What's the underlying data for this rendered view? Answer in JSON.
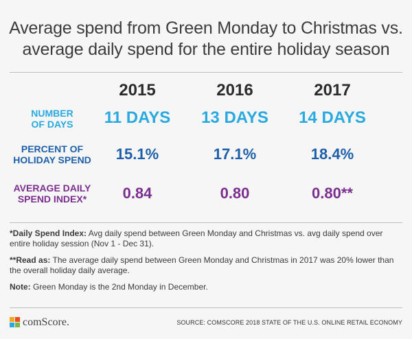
{
  "title": {
    "line1": "Average spend from Green Monday to Christmas vs.",
    "line2": "average daily spend for the entire holiday season"
  },
  "years": [
    "2015",
    "2016",
    "2017"
  ],
  "rows": {
    "days": {
      "label1": "NUMBER",
      "label2": "OF DAYS",
      "values": [
        "11 DAYS",
        "13 DAYS",
        "14 DAYS"
      ]
    },
    "percent": {
      "label1": "PERCENT OF",
      "label2": "HOLIDAY SPEND",
      "values": [
        "15.1%",
        "17.1%",
        "18.4%"
      ]
    },
    "index": {
      "label1": "AVERAGE DAILY",
      "label2": "SPEND INDEX*",
      "values": [
        "0.84",
        "0.80",
        "0.80**"
      ]
    }
  },
  "notes": {
    "n1_bold": "*Daily Spend Index:",
    "n1_text": " Avg daily spend between Green Monday and Christmas vs. avg daily spend over entire holiday session (Nov 1 - Dec 31).",
    "n2_bold": "**Read as:",
    "n2_text": " The average daily spend between Green Monday and Christmas in 2017 was 20% lower than the overall holiday daily average.",
    "n3_bold": "Note:",
    "n3_text": " Green Monday is the 2nd Monday in December."
  },
  "footer": {
    "logo_text": "comScore.",
    "source": "SOURCE: COMSCORE 2018 STATE OF THE U.S. ONLINE RETAIL ECONOMY"
  },
  "colors": {
    "days": "#29a9e0",
    "percent": "#1d5fa8",
    "index": "#7b2e8f"
  }
}
